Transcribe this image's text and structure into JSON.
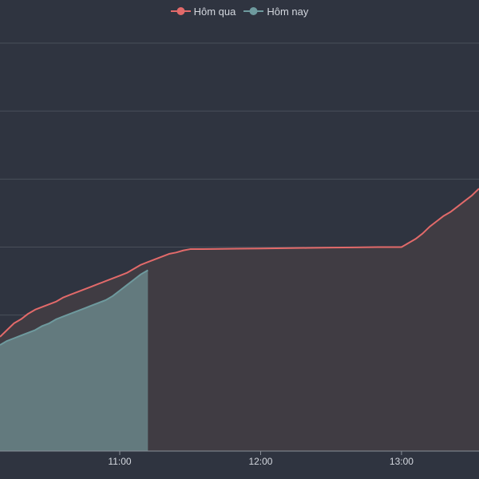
{
  "chart_data": {
    "type": "area",
    "x_ticks": [
      "11:00",
      "12:00",
      "13:00"
    ],
    "series": [
      {
        "name": "Hôm qua",
        "color": "#e26a6a",
        "fill": "#403c43",
        "x": [
          "10:09",
          "10:12",
          "10:15",
          "10:18",
          "10:21",
          "10:24",
          "10:27",
          "10:30",
          "10:33",
          "10:36",
          "10:39",
          "10:42",
          "10:45",
          "10:48",
          "10:51",
          "10:54",
          "10:57",
          "11:00",
          "11:03",
          "11:06",
          "11:09",
          "11:12",
          "11:15",
          "11:18",
          "11:21",
          "11:24",
          "11:27",
          "11:30",
          "11:35",
          "11:40",
          "11:50",
          "12:00",
          "12:10",
          "12:20",
          "12:30",
          "12:40",
          "12:50",
          "13:00",
          "13:03",
          "13:06",
          "13:09",
          "13:12",
          "13:15",
          "13:18",
          "13:21",
          "13:24",
          "13:27",
          "13:30",
          "13:33"
        ],
        "y": [
          8.4,
          8.9,
          9.4,
          9.7,
          10.1,
          10.4,
          10.6,
          10.8,
          11.0,
          11.3,
          11.5,
          11.7,
          11.9,
          12.1,
          12.3,
          12.5,
          12.7,
          12.9,
          13.1,
          13.4,
          13.7,
          13.9,
          14.1,
          14.3,
          14.5,
          14.6,
          14.75,
          14.85,
          14.85,
          14.86,
          14.88,
          14.9,
          14.92,
          14.94,
          14.96,
          14.98,
          15.0,
          15.0,
          15.3,
          15.6,
          16.0,
          16.5,
          16.9,
          17.3,
          17.6,
          18.0,
          18.4,
          18.8,
          19.3
        ]
      },
      {
        "name": "Hôm nay",
        "color": "#6e9a9e",
        "fill": "#637a7e",
        "x": [
          "10:09",
          "10:12",
          "10:15",
          "10:18",
          "10:21",
          "10:24",
          "10:27",
          "10:30",
          "10:33",
          "10:36",
          "10:39",
          "10:42",
          "10:45",
          "10:48",
          "10:51",
          "10:54",
          "10:57",
          "11:00",
          "11:03",
          "11:06",
          "11:09",
          "11:12"
        ],
        "y": [
          7.8,
          8.1,
          8.3,
          8.5,
          8.7,
          8.9,
          9.2,
          9.4,
          9.7,
          9.9,
          10.1,
          10.3,
          10.5,
          10.7,
          10.9,
          11.1,
          11.4,
          11.8,
          12.2,
          12.6,
          13.0,
          13.3
        ]
      }
    ],
    "xlim": [
      "10:09",
      "13:33"
    ],
    "ylim": [
      0,
      30
    ],
    "grid": true,
    "legend_position": "top-center"
  }
}
